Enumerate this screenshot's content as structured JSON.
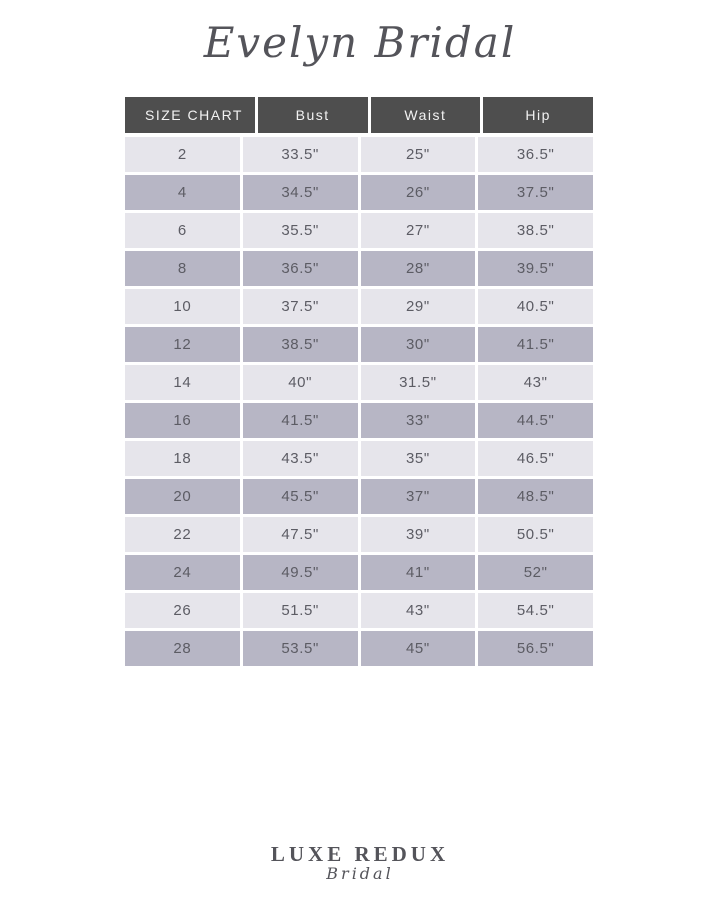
{
  "header": {
    "brand": "Evelyn Bridal"
  },
  "table": {
    "columns": [
      "SIZE CHART",
      "Bust",
      "Waist",
      "Hip"
    ],
    "rows": [
      [
        "2",
        "33.5\"",
        "25\"",
        "36.5\""
      ],
      [
        "4",
        "34.5\"",
        "26\"",
        "37.5\""
      ],
      [
        "6",
        "35.5\"",
        "27\"",
        "38.5\""
      ],
      [
        "8",
        "36.5\"",
        "28\"",
        "39.5\""
      ],
      [
        "10",
        "37.5\"",
        "29\"",
        "40.5\""
      ],
      [
        "12",
        "38.5\"",
        "30\"",
        "41.5\""
      ],
      [
        "14",
        "40\"",
        "31.5\"",
        "43\""
      ],
      [
        "16",
        "41.5\"",
        "33\"",
        "44.5\""
      ],
      [
        "18",
        "43.5\"",
        "35\"",
        "46.5\""
      ],
      [
        "20",
        "45.5\"",
        "37\"",
        "48.5\""
      ],
      [
        "22",
        "47.5\"",
        "39\"",
        "50.5\""
      ],
      [
        "24",
        "49.5\"",
        "41\"",
        "52\""
      ],
      [
        "26",
        "51.5\"",
        "43\"",
        "54.5\""
      ],
      [
        "28",
        "53.5\"",
        "45\"",
        "56.5\""
      ]
    ]
  },
  "footer": {
    "logo_main": "LUXE REDUX",
    "logo_sub": "Bridal"
  },
  "colors": {
    "header_bg": "#4e4e4e",
    "header_text": "#f2f2f2",
    "row_light": "#e6e5eb",
    "row_dark": "#b7b6c5",
    "cell_text": "#5c5c64",
    "title_text": "#54545a"
  }
}
